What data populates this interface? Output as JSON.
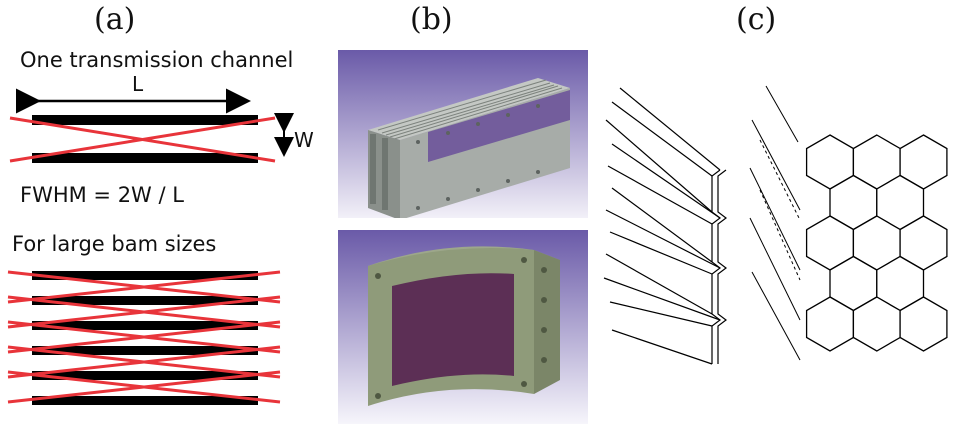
{
  "panels": {
    "a": "(a)",
    "b": "(b)",
    "c": "(c)"
  },
  "panel_a": {
    "top_title": "One transmission channel",
    "length_label": "L",
    "width_label": "W",
    "formula": "FWHM = 2W / L",
    "bottom_title": "For large bam sizes"
  },
  "colors": {
    "plate": "#000000",
    "ray": "#e8343a",
    "photo_bg_top": "#6a5aa8",
    "photo_bg_bottom": "#f2f0f8",
    "metal": "#a7aca8",
    "metal_dark": "#6f7671",
    "green_metal": "#8f9b7a",
    "purple_face": "#5c2f55"
  },
  "icons": {
    "double_arrow": "double-headed-arrow-icon",
    "vertical_arrow": "vertical-double-arrow-icon"
  }
}
